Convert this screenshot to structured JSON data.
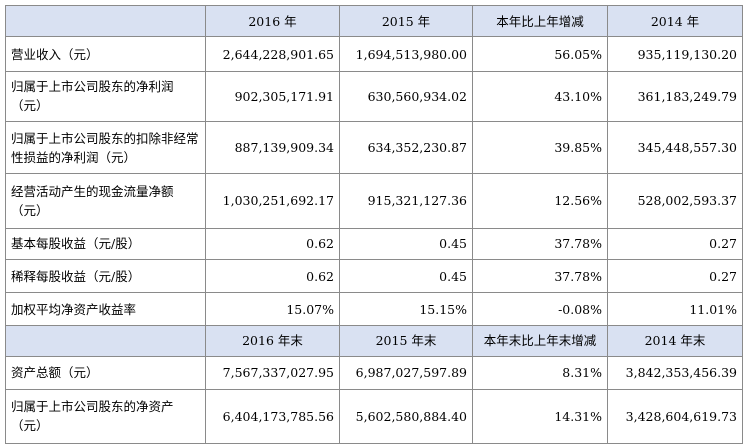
{
  "header1": [
    "",
    "2016 年",
    "2015 年",
    "本年比上年增减",
    "2014 年"
  ],
  "header2": [
    "",
    "2016 年末",
    "2015 年末",
    "本年末比上年末增减",
    "2014 年末"
  ],
  "rows1": [
    {
      "label": "营业收入（元）",
      "values": [
        "2,644,228,901.65",
        "1,694,513,980.00",
        "56.05%",
        "935,119,130.20"
      ]
    },
    {
      "label": "归属于上市公司股东的净利润（元）",
      "values": [
        "902,305,171.91",
        "630,560,934.02",
        "43.10%",
        "361,183,249.79"
      ]
    },
    {
      "label": "归属于上市公司股东的扣除非经常性损益的净利润（元）",
      "values": [
        "887,139,909.34",
        "634,352,230.87",
        "39.85%",
        "345,448,557.30"
      ]
    },
    {
      "label": "经营活动产生的现金流量净额（元）",
      "values": [
        "1,030,251,692.17",
        "915,321,127.36",
        "12.56%",
        "528,002,593.37"
      ]
    },
    {
      "label": "基本每股收益（元/股）",
      "values": [
        "0.62",
        "0.45",
        "37.78%",
        "0.27"
      ]
    },
    {
      "label": "稀释每股收益（元/股）",
      "values": [
        "0.62",
        "0.45",
        "37.78%",
        "0.27"
      ]
    },
    {
      "label": "加权平均净资产收益率",
      "values": [
        "15.07%",
        "15.15%",
        "-0.08%",
        "11.01%"
      ]
    }
  ],
  "rows2": [
    {
      "label": "资产总额（元）",
      "values": [
        "7,567,337,027.95",
        "6,987,027,597.89",
        "8.31%",
        "3,842,353,456.39"
      ]
    },
    {
      "label": "归属于上市公司股东的净资产（元）",
      "values": [
        "6,404,173,785.56",
        "5,602,580,884.40",
        "14.31%",
        "3,428,604,619.73"
      ]
    }
  ]
}
